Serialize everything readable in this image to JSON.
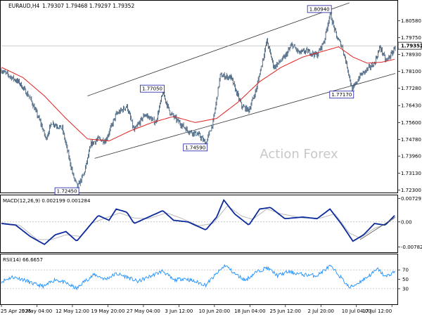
{
  "chart_data": [
    {
      "type": "candlestick",
      "pair": "EURAUD,H4",
      "ohlc": [
        "1.79307",
        "1.79468",
        "1.79297",
        "1.79352"
      ],
      "watermark": "Action Forex",
      "ylim": [
        1.7225,
        1.8145
      ],
      "y_ticks": [
        "1.80580",
        "1.79750",
        "1.78930",
        "1.78100",
        "1.77280",
        "1.76430",
        "1.75600",
        "1.74780",
        "1.73960",
        "1.73130",
        "1.72300"
      ],
      "current_price": "1.79352",
      "x_ticks": [
        "25 Apr 2025",
        "5 May 04:00",
        "12 May 12:00",
        "19 May 20:00",
        "27 May 04:00",
        "3 Jun 12:00",
        "10 Jun 20:00",
        "18 Jun 04:00",
        "25 Jun 12:00",
        "2 Jul 20:00",
        "10 Jul 04:00",
        "17 Jul 12:00"
      ],
      "n_bars": 550,
      "close_path": [
        [
          0,
          1.7815
        ],
        [
          10,
          1.779
        ],
        [
          25,
          1.7755
        ],
        [
          40,
          1.768
        ],
        [
          55,
          1.7555
        ],
        [
          62,
          1.748
        ],
        [
          70,
          1.756
        ],
        [
          85,
          1.753
        ],
        [
          100,
          1.73
        ],
        [
          106,
          1.7245
        ],
        [
          115,
          1.731
        ],
        [
          125,
          1.7455
        ],
        [
          135,
          1.748
        ],
        [
          145,
          1.747
        ],
        [
          160,
          1.76
        ],
        [
          175,
          1.764
        ],
        [
          185,
          1.752
        ],
        [
          200,
          1.76
        ],
        [
          215,
          1.756
        ],
        [
          225,
          1.7705
        ],
        [
          235,
          1.761
        ],
        [
          245,
          1.757
        ],
        [
          260,
          1.752
        ],
        [
          275,
          1.75
        ],
        [
          285,
          1.7459
        ],
        [
          295,
          1.756
        ],
        [
          305,
          1.779
        ],
        [
          320,
          1.778
        ],
        [
          335,
          1.764
        ],
        [
          345,
          1.762
        ],
        [
          355,
          1.772
        ],
        [
          370,
          1.796
        ],
        [
          380,
          1.783
        ],
        [
          395,
          1.788
        ],
        [
          405,
          1.794
        ],
        [
          415,
          1.79
        ],
        [
          425,
          1.791
        ],
        [
          440,
          1.789
        ],
        [
          450,
          1.796
        ],
        [
          458,
          1.8094
        ],
        [
          467,
          1.798
        ],
        [
          475,
          1.793
        ],
        [
          483,
          1.782
        ],
        [
          489,
          1.7717
        ],
        [
          500,
          1.779
        ],
        [
          510,
          1.782
        ],
        [
          520,
          1.785
        ],
        [
          528,
          1.793
        ],
        [
          536,
          1.786
        ],
        [
          545,
          1.79
        ],
        [
          549,
          1.79352
        ]
      ],
      "ma_path": [
        [
          0,
          1.783
        ],
        [
          30,
          1.778
        ],
        [
          60,
          1.769
        ],
        [
          90,
          1.758
        ],
        [
          120,
          1.748
        ],
        [
          150,
          1.747
        ],
        [
          180,
          1.752
        ],
        [
          210,
          1.756
        ],
        [
          240,
          1.759
        ],
        [
          270,
          1.756
        ],
        [
          300,
          1.758
        ],
        [
          330,
          1.766
        ],
        [
          360,
          1.776
        ],
        [
          390,
          1.783
        ],
        [
          420,
          1.788
        ],
        [
          450,
          1.791
        ],
        [
          470,
          1.793
        ],
        [
          490,
          1.788
        ],
        [
          510,
          1.785
        ],
        [
          530,
          1.7855
        ],
        [
          549,
          1.787
        ]
      ],
      "channel_upper": [
        [
          120,
          1.769
        ],
        [
          485,
          1.8145
        ]
      ],
      "channel_lower": [
        [
          130,
          1.7385
        ],
        [
          549,
          1.78
        ]
      ],
      "annotations": [
        {
          "label": "1.72450",
          "x": 106,
          "y": 1.7245,
          "pos": "below-left"
        },
        {
          "label": "1.77050",
          "x": 225,
          "y": 1.7705,
          "pos": "above-left"
        },
        {
          "label": "1.74590",
          "x": 285,
          "y": 1.7459,
          "pos": "below-left"
        },
        {
          "label": "1.80940",
          "x": 458,
          "y": 1.8094,
          "pos": "above-left"
        },
        {
          "label": "1.77170",
          "x": 489,
          "y": 1.7717,
          "pos": "below-left"
        }
      ]
    },
    {
      "type": "line",
      "title": "MACD(12,26,9) 0.002199 0.001284",
      "ylim": [
        -0.009,
        0.0076
      ],
      "y_ticks": [
        "0.007291",
        "0.00",
        "-0.00782"
      ],
      "macd_path": [
        [
          0,
          -0.0005
        ],
        [
          20,
          -0.001
        ],
        [
          40,
          -0.0045
        ],
        [
          60,
          -0.007
        ],
        [
          75,
          -0.004
        ],
        [
          90,
          -0.003
        ],
        [
          105,
          -0.006
        ],
        [
          120,
          -0.002
        ],
        [
          135,
          0.002
        ],
        [
          150,
          0.0005
        ],
        [
          160,
          0.004
        ],
        [
          175,
          0.003
        ],
        [
          185,
          -0.0005
        ],
        [
          200,
          0.001
        ],
        [
          225,
          0.0035
        ],
        [
          240,
          0.0005
        ],
        [
          260,
          0.0
        ],
        [
          285,
          -0.0025
        ],
        [
          300,
          0.0015
        ],
        [
          310,
          0.0068
        ],
        [
          325,
          0.0025
        ],
        [
          345,
          -0.001
        ],
        [
          360,
          0.004
        ],
        [
          375,
          0.0045
        ],
        [
          395,
          0.001
        ],
        [
          420,
          0.0015
        ],
        [
          440,
          0.001
        ],
        [
          458,
          0.004
        ],
        [
          475,
          -0.001
        ],
        [
          490,
          -0.006
        ],
        [
          505,
          -0.004
        ],
        [
          520,
          -0.0005
        ],
        [
          535,
          -0.001
        ],
        [
          549,
          0.0022
        ]
      ],
      "signal_path": [
        [
          0,
          -0.0003
        ],
        [
          25,
          -0.001
        ],
        [
          50,
          -0.0055
        ],
        [
          70,
          -0.0055
        ],
        [
          90,
          -0.004
        ],
        [
          110,
          -0.0045
        ],
        [
          125,
          -0.0005
        ],
        [
          145,
          0.0012
        ],
        [
          165,
          0.0028
        ],
        [
          185,
          0.0012
        ],
        [
          205,
          0.001
        ],
        [
          230,
          0.0028
        ],
        [
          250,
          0.0012
        ],
        [
          275,
          -0.0012
        ],
        [
          295,
          -0.0005
        ],
        [
          315,
          0.005
        ],
        [
          335,
          0.0018
        ],
        [
          350,
          0.0008
        ],
        [
          370,
          0.004
        ],
        [
          390,
          0.0025
        ],
        [
          420,
          0.0012
        ],
        [
          445,
          0.0012
        ],
        [
          465,
          0.0025
        ],
        [
          485,
          -0.0035
        ],
        [
          500,
          -0.005
        ],
        [
          520,
          -0.002
        ],
        [
          535,
          -0.0008
        ],
        [
          549,
          0.0013
        ]
      ],
      "trend_line": [
        [
          500,
          -0.0055
        ],
        [
          549,
          0.0015
        ]
      ]
    },
    {
      "type": "line",
      "title": "RSI(14) 66.6657",
      "ylim": [
        0,
        100
      ],
      "y_ticks": [
        "70",
        "50",
        "30"
      ],
      "levels": [
        70,
        30
      ],
      "rsi_path": [
        [
          0,
          45
        ],
        [
          15,
          55
        ],
        [
          30,
          50
        ],
        [
          45,
          40
        ],
        [
          60,
          35
        ],
        [
          75,
          50
        ],
        [
          90,
          42
        ],
        [
          105,
          30
        ],
        [
          115,
          45
        ],
        [
          130,
          60
        ],
        [
          145,
          50
        ],
        [
          160,
          62
        ],
        [
          175,
          55
        ],
        [
          190,
          45
        ],
        [
          210,
          58
        ],
        [
          225,
          68
        ],
        [
          240,
          48
        ],
        [
          255,
          52
        ],
        [
          270,
          45
        ],
        [
          285,
          38
        ],
        [
          300,
          62
        ],
        [
          312,
          80
        ],
        [
          325,
          62
        ],
        [
          340,
          48
        ],
        [
          355,
          65
        ],
        [
          370,
          75
        ],
        [
          385,
          58
        ],
        [
          400,
          66
        ],
        [
          420,
          60
        ],
        [
          440,
          58
        ],
        [
          458,
          78
        ],
        [
          470,
          60
        ],
        [
          485,
          32
        ],
        [
          495,
          40
        ],
        [
          510,
          55
        ],
        [
          525,
          72
        ],
        [
          535,
          55
        ],
        [
          549,
          66.7
        ]
      ]
    }
  ]
}
